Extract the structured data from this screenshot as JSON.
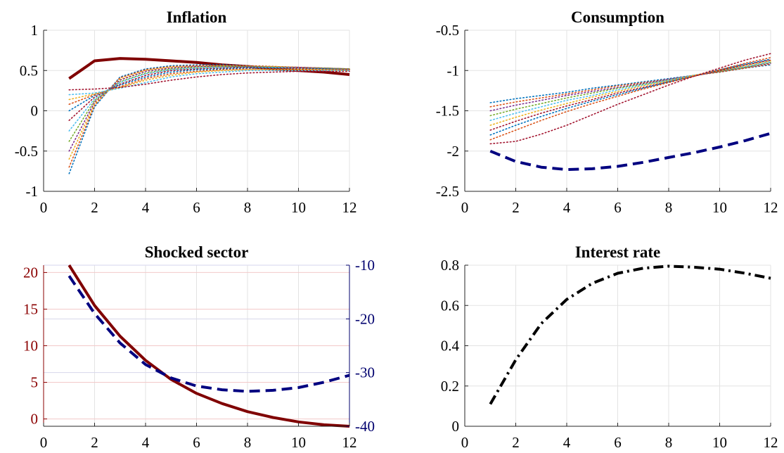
{
  "chart_data": [
    {
      "type": "line",
      "title": "Inflation",
      "xlabel": "",
      "ylabel": "",
      "xlim": [
        0,
        12
      ],
      "ylim": [
        -1,
        1
      ],
      "xticks": [
        0,
        2,
        4,
        6,
        8,
        10,
        12
      ],
      "yticks": [
        -1,
        -0.5,
        0,
        0.5,
        1
      ],
      "xtick_labels": [
        "0",
        "2",
        "4",
        "6",
        "8",
        "10",
        "12"
      ],
      "ytick_labels": [
        "-1",
        "-0.5",
        "0",
        "0.5",
        "1"
      ],
      "grid": true,
      "x": [
        1,
        2,
        3,
        4,
        5,
        6,
        7,
        8,
        9,
        10,
        11,
        12
      ],
      "series": [
        {
          "style": "solid",
          "color": "#800000",
          "values": [
            0.4,
            0.62,
            0.65,
            0.64,
            0.62,
            0.6,
            0.57,
            0.55,
            0.52,
            0.5,
            0.48,
            0.45
          ]
        },
        {
          "style": "dotted",
          "color": "#0072bd",
          "values": [
            -0.78,
            0.05,
            0.42,
            0.52,
            0.56,
            0.57,
            0.57,
            0.56,
            0.55,
            0.54,
            0.53,
            0.52
          ]
        },
        {
          "style": "dotted",
          "color": "#d95319",
          "values": [
            -0.7,
            0.07,
            0.41,
            0.51,
            0.55,
            0.56,
            0.56,
            0.56,
            0.55,
            0.54,
            0.53,
            0.52
          ]
        },
        {
          "style": "dotted",
          "color": "#edb120",
          "values": [
            -0.6,
            0.09,
            0.39,
            0.5,
            0.54,
            0.55,
            0.56,
            0.55,
            0.55,
            0.54,
            0.53,
            0.52
          ]
        },
        {
          "style": "dotted",
          "color": "#7e2f8e",
          "values": [
            -0.5,
            0.11,
            0.38,
            0.49,
            0.53,
            0.55,
            0.55,
            0.55,
            0.54,
            0.54,
            0.53,
            0.52
          ]
        },
        {
          "style": "dotted",
          "color": "#77ac30",
          "values": [
            -0.38,
            0.13,
            0.36,
            0.47,
            0.52,
            0.54,
            0.55,
            0.55,
            0.54,
            0.53,
            0.53,
            0.52
          ]
        },
        {
          "style": "dotted",
          "color": "#4dbeee",
          "values": [
            -0.25,
            0.15,
            0.35,
            0.46,
            0.51,
            0.53,
            0.54,
            0.54,
            0.54,
            0.53,
            0.52,
            0.51
          ]
        },
        {
          "style": "dotted",
          "color": "#a2142f",
          "values": [
            -0.12,
            0.17,
            0.33,
            0.44,
            0.5,
            0.52,
            0.53,
            0.54,
            0.53,
            0.53,
            0.52,
            0.51
          ]
        },
        {
          "style": "dotted",
          "color": "#0072bd",
          "values": [
            0.0,
            0.19,
            0.32,
            0.42,
            0.48,
            0.51,
            0.52,
            0.53,
            0.53,
            0.52,
            0.52,
            0.51
          ]
        },
        {
          "style": "dotted",
          "color": "#d95319",
          "values": [
            0.08,
            0.2,
            0.3,
            0.4,
            0.46,
            0.49,
            0.51,
            0.52,
            0.52,
            0.52,
            0.51,
            0.51
          ]
        },
        {
          "style": "dotted",
          "color": "#edb120",
          "values": [
            0.14,
            0.21,
            0.29,
            0.38,
            0.44,
            0.48,
            0.5,
            0.51,
            0.51,
            0.51,
            0.51,
            0.5
          ]
        },
        {
          "style": "dotted",
          "color": "#4dbeee",
          "values": [
            0.2,
            0.22,
            0.28,
            0.35,
            0.42,
            0.46,
            0.48,
            0.5,
            0.5,
            0.5,
            0.5,
            0.5
          ]
        },
        {
          "style": "dotted",
          "color": "#a2142f",
          "values": [
            0.26,
            0.27,
            0.29,
            0.33,
            0.38,
            0.42,
            0.45,
            0.47,
            0.48,
            0.49,
            0.49,
            0.49
          ]
        }
      ]
    },
    {
      "type": "line",
      "title": "Consumption",
      "xlabel": "",
      "ylabel": "",
      "xlim": [
        0,
        12
      ],
      "ylim": [
        -2.5,
        -0.5
      ],
      "xticks": [
        0,
        2,
        4,
        6,
        8,
        10,
        12
      ],
      "yticks": [
        -2.5,
        -2,
        -1.5,
        -1,
        -0.5
      ],
      "xtick_labels": [
        "0",
        "2",
        "4",
        "6",
        "8",
        "10",
        "12"
      ],
      "ytick_labels": [
        "-2.5",
        "-2",
        "-1.5",
        "-1",
        "-0.5"
      ],
      "grid": true,
      "x": [
        1,
        2,
        3,
        4,
        5,
        6,
        7,
        8,
        9,
        10,
        11,
        12
      ],
      "series": [
        {
          "style": "dashed",
          "color": "#000080",
          "values": [
            -2.0,
            -2.13,
            -2.2,
            -2.23,
            -2.22,
            -2.19,
            -2.14,
            -2.08,
            -2.02,
            -1.95,
            -1.87,
            -1.78
          ]
        },
        {
          "style": "dotted",
          "color": "#0072bd",
          "values": [
            -1.4,
            -1.35,
            -1.31,
            -1.27,
            -1.22,
            -1.18,
            -1.14,
            -1.1,
            -1.06,
            -1.02,
            -0.97,
            -0.93
          ]
        },
        {
          "style": "dotted",
          "color": "#d95319",
          "values": [
            -1.45,
            -1.39,
            -1.34,
            -1.29,
            -1.24,
            -1.19,
            -1.15,
            -1.11,
            -1.06,
            -1.02,
            -0.97,
            -0.92
          ]
        },
        {
          "style": "dotted",
          "color": "#7e2f8e",
          "values": [
            -1.5,
            -1.43,
            -1.37,
            -1.31,
            -1.26,
            -1.21,
            -1.16,
            -1.11,
            -1.06,
            -1.01,
            -0.96,
            -0.91
          ]
        },
        {
          "style": "dotted",
          "color": "#77ac30",
          "values": [
            -1.56,
            -1.48,
            -1.41,
            -1.34,
            -1.28,
            -1.22,
            -1.17,
            -1.12,
            -1.06,
            -1.01,
            -0.96,
            -0.9
          ]
        },
        {
          "style": "dotted",
          "color": "#4dbeee",
          "values": [
            -1.62,
            -1.53,
            -1.45,
            -1.37,
            -1.31,
            -1.24,
            -1.18,
            -1.12,
            -1.06,
            -1.0,
            -0.95,
            -0.89
          ]
        },
        {
          "style": "dotted",
          "color": "#edb120",
          "values": [
            -1.68,
            -1.58,
            -1.49,
            -1.41,
            -1.33,
            -1.26,
            -1.19,
            -1.13,
            -1.06,
            -1.0,
            -0.94,
            -0.88
          ]
        },
        {
          "style": "dotted",
          "color": "#a2142f",
          "values": [
            -1.74,
            -1.63,
            -1.53,
            -1.44,
            -1.36,
            -1.28,
            -1.21,
            -1.14,
            -1.07,
            -1.0,
            -0.93,
            -0.87
          ]
        },
        {
          "style": "dotted",
          "color": "#0072bd",
          "values": [
            -1.8,
            -1.68,
            -1.57,
            -1.47,
            -1.38,
            -1.3,
            -1.22,
            -1.14,
            -1.07,
            -0.99,
            -0.92,
            -0.86
          ]
        },
        {
          "style": "dotted",
          "color": "#d95319",
          "values": [
            -1.86,
            -1.74,
            -1.62,
            -1.51,
            -1.41,
            -1.32,
            -1.23,
            -1.15,
            -1.07,
            -0.99,
            -0.91,
            -0.84
          ]
        },
        {
          "style": "dotted",
          "color": "#a2142f",
          "values": [
            -1.91,
            -1.88,
            -1.79,
            -1.68,
            -1.55,
            -1.42,
            -1.3,
            -1.18,
            -1.07,
            -0.97,
            -0.87,
            -0.79
          ]
        }
      ]
    },
    {
      "type": "line",
      "title": "Shocked sector",
      "xlabel": "",
      "ylabel": "",
      "xlim": [
        0,
        12
      ],
      "ylim": [
        -1,
        21
      ],
      "y2lim": [
        -40,
        -10
      ],
      "xticks": [
        0,
        2,
        4,
        6,
        8,
        10,
        12
      ],
      "yticks": [
        0,
        5,
        10,
        15,
        20
      ],
      "y2ticks": [
        -40,
        -30,
        -20,
        -10
      ],
      "xtick_labels": [
        "0",
        "2",
        "4",
        "6",
        "8",
        "10",
        "12"
      ],
      "ytick_labels": [
        "0",
        "5",
        "10",
        "15",
        "20"
      ],
      "y2tick_labels": [
        "-40",
        "-30",
        "-20",
        "-10"
      ],
      "grid": true,
      "x": [
        1,
        2,
        3,
        4,
        5,
        6,
        7,
        8,
        9,
        10,
        11,
        12
      ],
      "series": [
        {
          "axis": "left",
          "style": "solid",
          "color": "#800000",
          "values": [
            21,
            15.5,
            11.3,
            8.0,
            5.4,
            3.5,
            2.1,
            1.0,
            0.2,
            -0.4,
            -0.8,
            -1.0
          ]
        },
        {
          "axis": "right",
          "style": "dashed",
          "color": "#000080",
          "values": [
            -12,
            -19,
            -24.5,
            -28.5,
            -31,
            -32.5,
            -33.2,
            -33.5,
            -33.3,
            -32.8,
            -31.8,
            -30.5
          ]
        }
      ]
    },
    {
      "type": "line",
      "title": "Interest rate",
      "xlabel": "",
      "ylabel": "",
      "xlim": [
        0,
        12
      ],
      "ylim": [
        0,
        0.8
      ],
      "xticks": [
        0,
        2,
        4,
        6,
        8,
        10,
        12
      ],
      "yticks": [
        0,
        0.2,
        0.4,
        0.6,
        0.8
      ],
      "xtick_labels": [
        "0",
        "2",
        "4",
        "6",
        "8",
        "10",
        "12"
      ],
      "ytick_labels": [
        "0",
        "0.2",
        "0.4",
        "0.6",
        "0.8"
      ],
      "grid": true,
      "x": [
        1,
        2,
        3,
        4,
        5,
        6,
        7,
        8,
        9,
        10,
        11,
        12
      ],
      "series": [
        {
          "style": "dashdot",
          "color": "#000000",
          "values": [
            0.11,
            0.33,
            0.51,
            0.63,
            0.71,
            0.76,
            0.785,
            0.795,
            0.79,
            0.78,
            0.76,
            0.735
          ]
        }
      ]
    }
  ]
}
